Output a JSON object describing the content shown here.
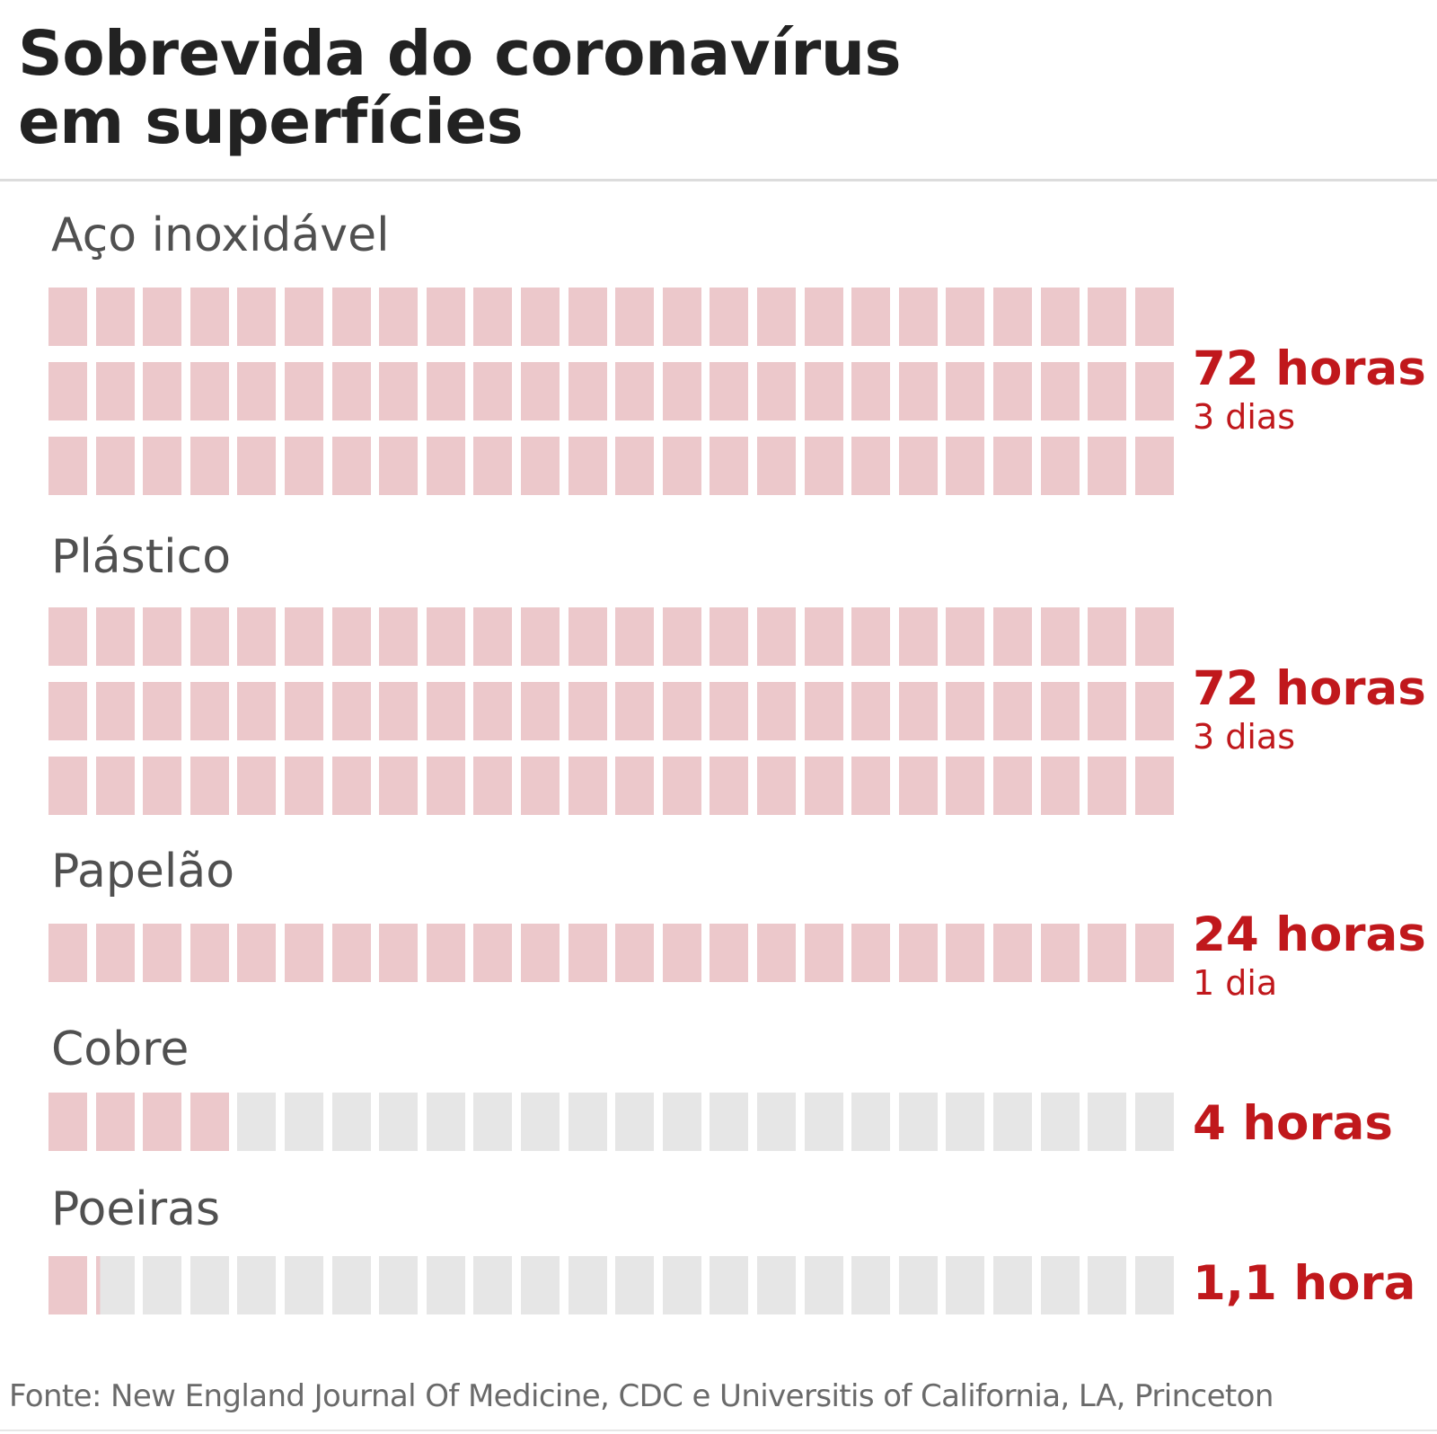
{
  "title": {
    "line1": "Sobrevida do coronavírus",
    "line2": "em superfícies"
  },
  "chart_data": {
    "type": "waffle",
    "unit": "horas",
    "cells_per_row": 24,
    "cell_value_hours": 1,
    "colors": {
      "filled": "#ecc8cb",
      "empty": "#e6e6e6",
      "value_text": "#c0181c",
      "label_text": "#505050"
    },
    "series": [
      {
        "surface": "Aço inoxidável",
        "hours": 72,
        "rows": 3,
        "value_label": "72 horas",
        "sub_label": "3 dias"
      },
      {
        "surface": "Plástico",
        "hours": 72,
        "rows": 3,
        "value_label": "72 horas",
        "sub_label": "3 dias"
      },
      {
        "surface": "Papelão",
        "hours": 24,
        "rows": 1,
        "value_label": "24 horas",
        "sub_label": "1 dia"
      },
      {
        "surface": "Cobre",
        "hours": 4,
        "rows": 1,
        "value_label": "4 horas",
        "sub_label": ""
      },
      {
        "surface": "Poeiras",
        "hours": 1.1,
        "rows": 1,
        "value_label": "1,1 hora",
        "sub_label": ""
      }
    ]
  },
  "source": "Fonte: New England Journal Of Medicine, CDC e Universitis of California, LA, Princeton"
}
